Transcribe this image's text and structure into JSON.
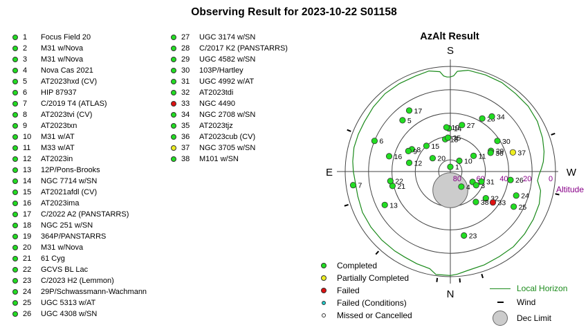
{
  "title": "Observing Result for 2023-10-22 S01158",
  "colors": {
    "completed": "#22dd22",
    "partially_completed": "#eeee22",
    "failed": "#dd1111",
    "failed_conditions": "#22cccc",
    "missed": "#ffffff",
    "horizon": "#1a8a1a",
    "altitude_text": "#880088"
  },
  "targets": [
    {
      "n": "1",
      "name": "Focus Field 20",
      "status": "completed"
    },
    {
      "n": "2",
      "name": "M31 w/Nova",
      "status": "completed"
    },
    {
      "n": "3",
      "name": "M31 w/Nova",
      "status": "completed"
    },
    {
      "n": "4",
      "name": "Nova Cas 2021",
      "status": "completed"
    },
    {
      "n": "5",
      "name": "AT2023hxd (CV)",
      "status": "completed"
    },
    {
      "n": "6",
      "name": "HIP 87937",
      "status": "completed"
    },
    {
      "n": "7",
      "name": "C/2019 T4 (ATLAS)",
      "status": "completed"
    },
    {
      "n": "8",
      "name": "AT2023tvi (CV)",
      "status": "completed"
    },
    {
      "n": "9",
      "name": "AT2023txn",
      "status": "completed"
    },
    {
      "n": "10",
      "name": "M31 w/AT",
      "status": "completed"
    },
    {
      "n": "11",
      "name": "M33 w/AT",
      "status": "completed"
    },
    {
      "n": "12",
      "name": "AT2023in",
      "status": "completed"
    },
    {
      "n": "13",
      "name": "12P/Pons-Brooks",
      "status": "completed"
    },
    {
      "n": "14",
      "name": "NGC 7714 w/SN",
      "status": "completed"
    },
    {
      "n": "15",
      "name": "AT2021afdl (CV)",
      "status": "completed"
    },
    {
      "n": "16",
      "name": "AT2023ima",
      "status": "completed"
    },
    {
      "n": "17",
      "name": "C/2022 A2 (PANSTARRS)",
      "status": "completed"
    },
    {
      "n": "18",
      "name": "NGC 251 w/SN",
      "status": "completed"
    },
    {
      "n": "19",
      "name": "364P/PANSTARRS",
      "status": "completed"
    },
    {
      "n": "20",
      "name": "M31 w/Nova",
      "status": "completed"
    },
    {
      "n": "21",
      "name": "61 Cyg",
      "status": "completed"
    },
    {
      "n": "22",
      "name": "GCVS BL Lac",
      "status": "completed"
    },
    {
      "n": "23",
      "name": "C/2023 H2 (Lemmon)",
      "status": "completed"
    },
    {
      "n": "24",
      "name": "29P/Schwassmann-Wachmann",
      "status": "completed"
    },
    {
      "n": "25",
      "name": "UGC 5313 w/AT",
      "status": "completed"
    },
    {
      "n": "26",
      "name": "UGC 4308 w/SN",
      "status": "completed"
    },
    {
      "n": "27",
      "name": "UGC 3174 w/SN",
      "status": "completed"
    },
    {
      "n": "28",
      "name": "C/2017 K2 (PANSTARRS)",
      "status": "completed"
    },
    {
      "n": "29",
      "name": "UGC 4582 w/SN",
      "status": "completed"
    },
    {
      "n": "30",
      "name": "103P/Hartley",
      "status": "completed"
    },
    {
      "n": "31",
      "name": "UGC 4992 w/AT",
      "status": "completed"
    },
    {
      "n": "32",
      "name": "AT2023tdi",
      "status": "completed"
    },
    {
      "n": "33",
      "name": "NGC 4490",
      "status": "failed"
    },
    {
      "n": "34",
      "name": "NGC 2708 w/SN",
      "status": "completed"
    },
    {
      "n": "35",
      "name": "AT2023tjz",
      "status": "completed"
    },
    {
      "n": "36",
      "name": "AT2023cub (CV)",
      "status": "completed"
    },
    {
      "n": "37",
      "name": "NGC 3705 w/SN",
      "status": "partially_completed"
    },
    {
      "n": "38",
      "name": "M101 w/SN",
      "status": "completed"
    }
  ],
  "azalt": {
    "title": "AzAlt Result",
    "directions": {
      "south": "S",
      "north": "N",
      "east": "E",
      "west": "W"
    },
    "altitude_ticks": [
      "80",
      "60",
      "40",
      "20",
      "0"
    ],
    "altitude_label": "Altitude",
    "rings_deg": [
      0,
      20,
      40,
      60,
      80
    ],
    "dec_limit": {
      "alt": 74,
      "az": 0,
      "angular_radius_deg": 15
    },
    "points": [
      {
        "n": "1",
        "alt": 86,
        "az": 180,
        "status": "completed"
      },
      {
        "n": "2",
        "alt": 69,
        "az": 295,
        "status": "completed"
      },
      {
        "n": "3",
        "alt": 65,
        "az": 298,
        "status": "completed"
      },
      {
        "n": "4",
        "alt": 74,
        "az": 324,
        "status": "completed"
      },
      {
        "n": "5",
        "alt": 30,
        "az": 137,
        "status": "completed"
      },
      {
        "n": "6",
        "alt": 20,
        "az": 112,
        "status": "completed"
      },
      {
        "n": "7",
        "alt": 6,
        "az": 82,
        "status": "completed"
      },
      {
        "n": "8",
        "alt": 52,
        "az": 120,
        "status": "completed"
      },
      {
        "n": "9",
        "alt": 50,
        "az": 116,
        "status": "completed"
      },
      {
        "n": "10",
        "alt": 78,
        "az": 220,
        "status": "completed"
      },
      {
        "n": "11",
        "alt": 66,
        "az": 236,
        "status": "completed"
      },
      {
        "n": "12",
        "alt": 54,
        "az": 102,
        "status": "completed"
      },
      {
        "n": "13",
        "alt": 27,
        "az": 63,
        "status": "completed"
      },
      {
        "n": "14",
        "alt": 53,
        "az": 178,
        "status": "completed"
      },
      {
        "n": "15",
        "alt": 60,
        "az": 137,
        "status": "completed"
      },
      {
        "n": "16",
        "alt": 36,
        "az": 104,
        "status": "completed"
      },
      {
        "n": "17",
        "alt": 27,
        "az": 146,
        "status": "completed"
      },
      {
        "n": "18",
        "alt": 62,
        "az": 171,
        "status": "completed"
      },
      {
        "n": "19",
        "alt": 52,
        "az": 175,
        "status": "completed"
      },
      {
        "n": "20",
        "alt": 71,
        "az": 127,
        "status": "completed"
      },
      {
        "n": "21",
        "alt": 39,
        "az": 76,
        "status": "completed"
      },
      {
        "n": "22",
        "alt": 38,
        "az": 81,
        "status": "completed"
      },
      {
        "n": "23",
        "alt": 34,
        "az": 348,
        "status": "completed"
      },
      {
        "n": "24",
        "alt": 30,
        "az": 290,
        "status": "completed"
      },
      {
        "n": "25",
        "alt": 28,
        "az": 299,
        "status": "completed"
      },
      {
        "n": "26",
        "alt": 38,
        "az": 278,
        "status": "completed"
      },
      {
        "n": "27",
        "alt": 49,
        "az": 194,
        "status": "completed"
      },
      {
        "n": "28",
        "alt": 37,
        "az": 211,
        "status": "completed"
      },
      {
        "n": "29",
        "alt": 51,
        "az": 243,
        "status": "completed"
      },
      {
        "n": "30",
        "alt": 42,
        "az": 237,
        "status": "completed"
      },
      {
        "n": "31",
        "alt": 62,
        "az": 288,
        "status": "completed"
      },
      {
        "n": "32",
        "alt": 52,
        "az": 307,
        "status": "completed"
      },
      {
        "n": "33",
        "alt": 45,
        "az": 306,
        "status": "failed"
      },
      {
        "n": "34",
        "alt": 31,
        "az": 217,
        "status": "completed"
      },
      {
        "n": "35",
        "alt": 61,
        "az": 176,
        "status": "completed"
      },
      {
        "n": "36",
        "alt": 52,
        "az": 245,
        "status": "completed"
      },
      {
        "n": "37",
        "alt": 34,
        "az": 253,
        "status": "partially_completed"
      },
      {
        "n": "38",
        "alt": 56,
        "az": 320,
        "status": "completed"
      }
    ],
    "horizon": [
      [
        0,
        1
      ],
      [
        8,
        1
      ],
      [
        12,
        5
      ],
      [
        20,
        6
      ],
      [
        28,
        7
      ],
      [
        35,
        7
      ],
      [
        45,
        7
      ],
      [
        55,
        7
      ],
      [
        65,
        7
      ],
      [
        75,
        8
      ],
      [
        85,
        8
      ],
      [
        90,
        7
      ],
      [
        96,
        6
      ],
      [
        104,
        5
      ],
      [
        112,
        5
      ],
      [
        120,
        5
      ],
      [
        130,
        4
      ],
      [
        140,
        3
      ],
      [
        150,
        3
      ],
      [
        160,
        3
      ],
      [
        168,
        2
      ],
      [
        174,
        4
      ],
      [
        176,
        8
      ],
      [
        178,
        9
      ],
      [
        180,
        9
      ],
      [
        182,
        8
      ],
      [
        184,
        4
      ],
      [
        190,
        2
      ],
      [
        200,
        2
      ],
      [
        210,
        2
      ],
      [
        220,
        3
      ],
      [
        230,
        3
      ],
      [
        240,
        4
      ],
      [
        250,
        6
      ],
      [
        258,
        8
      ],
      [
        264,
        10
      ],
      [
        268,
        12
      ],
      [
        272,
        14
      ],
      [
        276,
        15
      ],
      [
        282,
        11
      ],
      [
        290,
        9
      ],
      [
        300,
        8
      ],
      [
        310,
        7
      ],
      [
        320,
        6
      ],
      [
        330,
        6
      ],
      [
        340,
        5
      ],
      [
        350,
        4
      ],
      [
        356,
        2
      ],
      [
        360,
        1
      ]
    ],
    "wind_marks_az": [
      7,
      42,
      72,
      112,
      250,
      282,
      343,
      355
    ]
  },
  "legend": {
    "completed": "Completed",
    "partially_completed": "Partially Completed",
    "failed": "Failed",
    "failed_conditions": "Failed (Conditions)",
    "missed": "Missed or Cancelled",
    "local_horizon": "Local Horizon",
    "wind": "Wind",
    "dec_limit": "Dec Limit"
  }
}
